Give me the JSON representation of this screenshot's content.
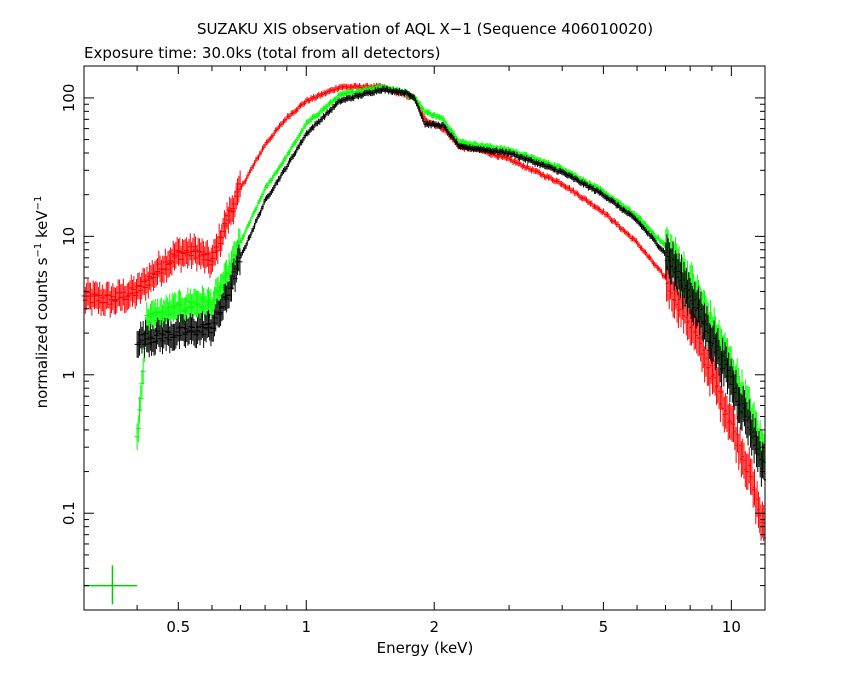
{
  "chart_data": {
    "type": "scatter",
    "title": "SUZAKU XIS observation of AQL X−1 (Sequence 406010020)",
    "subtitle": "Exposure time: 30.0ks (total from all detectors)",
    "xlabel": "Energy (keV)",
    "ylabel_main": "normalized counts s",
    "ylabel_sup1": "−1",
    "ylabel_mid": " keV",
    "ylabel_sup2": "−1",
    "xscale": "log",
    "yscale": "log",
    "xlim": [
      0.3,
      12
    ],
    "ylim": [
      0.02,
      170
    ],
    "xticks": [
      {
        "value": 0.5,
        "label": "0.5"
      },
      {
        "value": 1,
        "label": "1"
      },
      {
        "value": 2,
        "label": "2"
      },
      {
        "value": 5,
        "label": "5"
      },
      {
        "value": 10,
        "label": "10"
      }
    ],
    "yticks": [
      {
        "value": 0.1,
        "label": "0.1"
      },
      {
        "value": 1,
        "label": "1"
      },
      {
        "value": 10,
        "label": "10"
      },
      {
        "value": 100,
        "label": "100"
      }
    ],
    "grid": false,
    "legend": "none",
    "series": [
      {
        "color": "#ff0000",
        "x": [
          0.3,
          0.35,
          0.4,
          0.45,
          0.5,
          0.55,
          0.6,
          0.65,
          0.7,
          0.8,
          0.9,
          1.0,
          1.2,
          1.5,
          1.7,
          1.8,
          1.9,
          2.1,
          2.3,
          2.5,
          3,
          4,
          5,
          6,
          7,
          8,
          9,
          10,
          11,
          12
        ],
        "y": [
          3.6,
          3.5,
          4.0,
          5.8,
          7.5,
          7.8,
          6.5,
          13,
          22,
          46,
          72,
          95,
          120,
          120,
          105,
          100,
          70,
          60,
          44,
          43,
          36,
          24,
          15,
          9,
          5,
          2.4,
          1.0,
          0.45,
          0.2,
          0.07
        ]
      },
      {
        "color": "#00ff00",
        "x": [
          0.4,
          0.41,
          0.42,
          0.45,
          0.5,
          0.55,
          0.6,
          0.65,
          0.7,
          0.8,
          0.9,
          1.0,
          1.2,
          1.5,
          1.7,
          1.8,
          1.9,
          2.1,
          2.3,
          2.5,
          3,
          4,
          5,
          6,
          7,
          8,
          9,
          10,
          11,
          12
        ],
        "y": [
          0.35,
          0.8,
          2.5,
          2.7,
          3.0,
          3.3,
          3.2,
          5,
          9,
          22,
          38,
          65,
          105,
          120,
          110,
          100,
          80,
          70,
          48,
          46,
          42,
          31,
          21,
          14,
          8.5,
          4.5,
          2.2,
          1.1,
          0.55,
          0.25
        ]
      },
      {
        "color": "#000000",
        "x": [
          0.4,
          0.45,
          0.5,
          0.55,
          0.6,
          0.65,
          0.7,
          0.8,
          0.9,
          1.0,
          1.2,
          1.5,
          1.7,
          1.8,
          1.9,
          2.1,
          2.3,
          2.5,
          3,
          4,
          5,
          6,
          7,
          8,
          9,
          10,
          11,
          12
        ],
        "y": [
          1.8,
          1.9,
          2.0,
          2.1,
          2.2,
          3.6,
          7,
          18,
          32,
          55,
          95,
          115,
          110,
          100,
          65,
          63,
          44,
          43,
          40,
          29,
          20,
          13,
          7.5,
          3.8,
          1.8,
          0.9,
          0.45,
          0.2
        ]
      }
    ],
    "reference_marker": {
      "color": "#00cc00",
      "x": 0.35,
      "y": 0.03,
      "x_err": [
        0.3,
        0.4
      ],
      "y_err": [
        0.022,
        0.042
      ]
    }
  }
}
